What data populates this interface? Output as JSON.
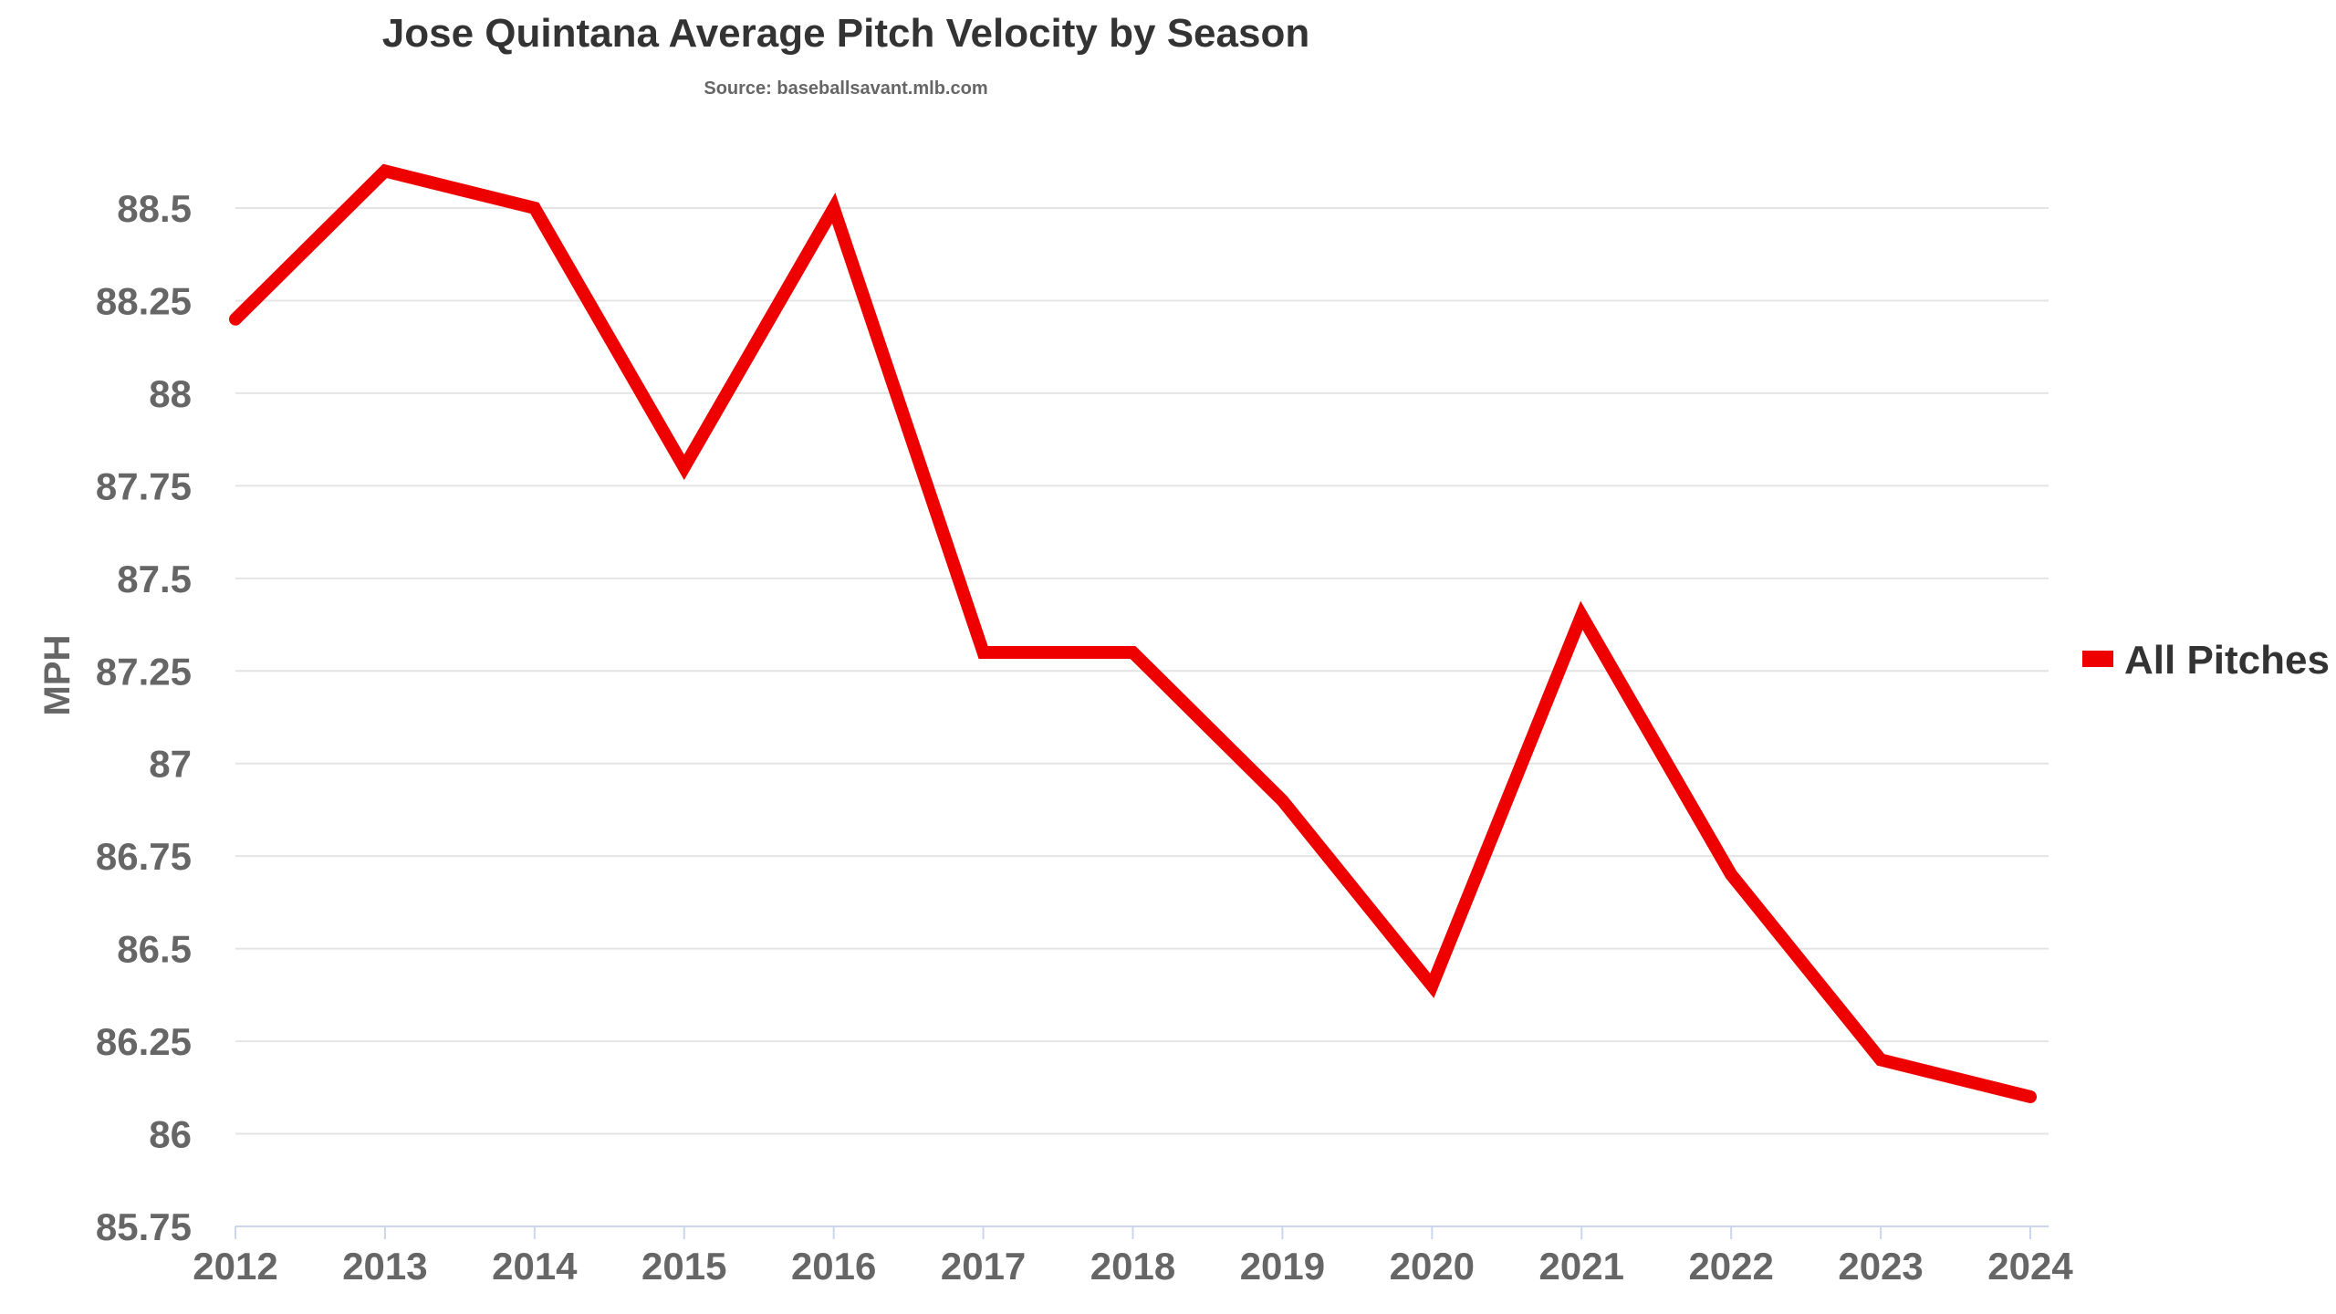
{
  "chart_data": {
    "type": "line",
    "title": "Jose Quintana Average Pitch Velocity by Season",
    "subtitle": "Source: baseballsavant.mlb.com",
    "xlabel": "",
    "ylabel": "MPH",
    "categories": [
      "2012",
      "2013",
      "2014",
      "2015",
      "2016",
      "2017",
      "2018",
      "2019",
      "2020",
      "2021",
      "2022",
      "2023",
      "2024"
    ],
    "series": [
      {
        "name": "All Pitches",
        "color": "#ee0000",
        "values": [
          88.2,
          88.6,
          88.5,
          87.8,
          88.5,
          87.3,
          87.3,
          86.9,
          86.4,
          87.4,
          86.7,
          86.2,
          86.1
        ]
      }
    ],
    "ylim": [
      85.75,
      88.5
    ],
    "yticks": [
      "85.75",
      "86",
      "86.25",
      "86.5",
      "86.75",
      "87",
      "87.25",
      "87.5",
      "87.75",
      "88",
      "88.25",
      "88.5"
    ],
    "grid": true,
    "legend_position": "right"
  }
}
